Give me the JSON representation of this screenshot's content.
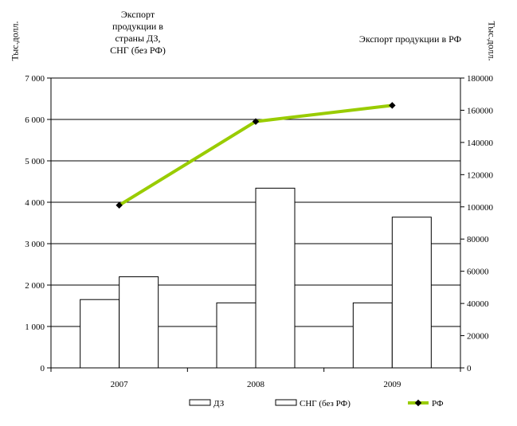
{
  "chart_data": {
    "type": "bar+line",
    "categories": [
      "2007",
      "2008",
      "2009"
    ],
    "left_axis": {
      "label": "Тыс.долл.",
      "ylim": [
        0,
        7000
      ],
      "ticks": [
        0,
        1000,
        2000,
        3000,
        4000,
        5000,
        6000,
        7000
      ],
      "tick_labels": [
        "0",
        "1 000",
        "2 000",
        "3 000",
        "4 000",
        "5 000",
        "6 000",
        "7 000"
      ]
    },
    "right_axis": {
      "label": "Тыс.долл.",
      "ylim": [
        0,
        180000
      ],
      "ticks": [
        0,
        20000,
        40000,
        60000,
        80000,
        100000,
        120000,
        140000,
        160000,
        180000
      ],
      "tick_labels": [
        "0",
        "20000",
        "40000",
        "60000",
        "80000",
        "100000",
        "120000",
        "140000",
        "160000",
        "180000"
      ]
    },
    "series": [
      {
        "name": "ДЗ",
        "type": "bar",
        "axis": "left",
        "color": "#ffffff",
        "values": [
          1650,
          1570,
          1570
        ]
      },
      {
        "name": "СНГ (без РФ)",
        "type": "bar",
        "axis": "left",
        "color": "#ffffff",
        "values": [
          2200,
          4340,
          3640
        ]
      },
      {
        "name": "РФ",
        "type": "line",
        "axis": "right",
        "color": "#99cc00",
        "values": [
          101000,
          153000,
          163000
        ]
      }
    ],
    "annotations": {
      "left": "Экспорт продукции в страны ДЗ, СНГ (без РФ)",
      "right": "Экспорт продукции в РФ"
    },
    "grid": true,
    "legend": "bottom"
  }
}
